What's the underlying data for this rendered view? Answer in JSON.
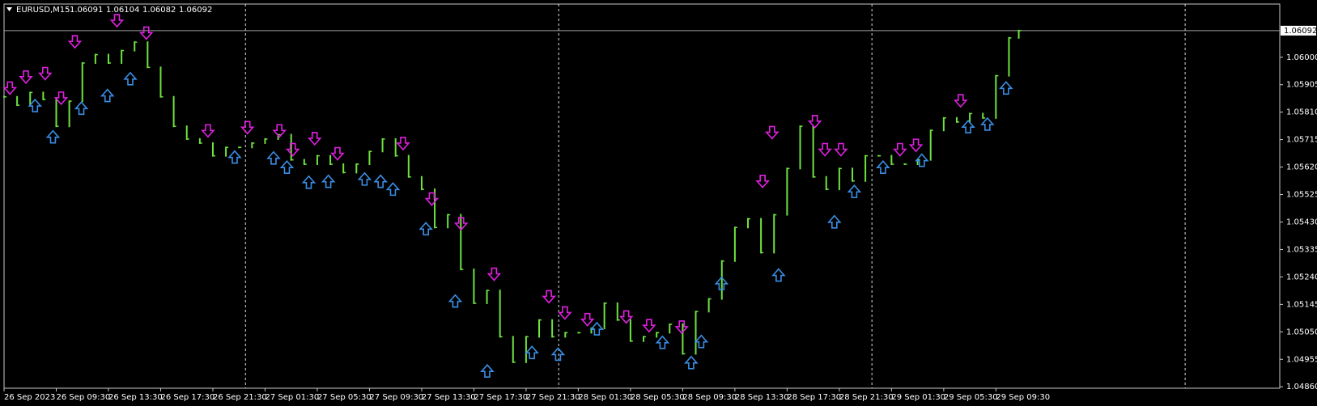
{
  "chart_data": {
    "type": "ohlc",
    "title": "EURUSD,M15",
    "header_values": [
      1.06091,
      1.06104,
      1.06082,
      1.06092
    ],
    "last_price": 1.06092,
    "color": "#6fe33f",
    "x": [
      0,
      4,
      8,
      12,
      16,
      20,
      24,
      28,
      32,
      36,
      40,
      44,
      48,
      52,
      56,
      60,
      64,
      68,
      72,
      76,
      80,
      84,
      88,
      92,
      96,
      100,
      104,
      108,
      112,
      116,
      120,
      124,
      128,
      132,
      136,
      140,
      144,
      148,
      152,
      156,
      160,
      164,
      168,
      172,
      176,
      180,
      184,
      188,
      192,
      196,
      200,
      204,
      208,
      212,
      216,
      220,
      224,
      228,
      232,
      236,
      240,
      244,
      248,
      252,
      256,
      260,
      264,
      268,
      272,
      276,
      280,
      284,
      288,
      292,
      296,
      300,
      304,
      308,
      311
    ],
    "values": [
      1.05863,
      1.05834,
      1.05878,
      1.05854,
      1.05761,
      1.05848,
      1.0598,
      1.06009,
      1.0598,
      1.06023,
      1.06052,
      1.05965,
      1.05863,
      1.05761,
      1.05717,
      1.05703,
      1.05659,
      1.05688,
      1.05688,
      1.05703,
      1.05717,
      1.05732,
      1.05645,
      1.0563,
      1.05659,
      1.0563,
      1.05601,
      1.0563,
      1.05674,
      1.05717,
      1.05659,
      1.05586,
      1.05543,
      1.05411,
      1.05455,
      1.05266,
      1.05149,
      1.05193,
      1.05033,
      1.04945,
      1.05033,
      1.05091,
      1.05033,
      1.05047,
      1.05047,
      1.05062,
      1.05149,
      1.05091,
      1.05018,
      1.05033,
      1.05047,
      1.05076,
      1.04974,
      1.0512,
      1.05164,
      1.05295,
      1.05411,
      1.05441,
      1.05324,
      1.05455,
      1.05615,
      1.05761,
      1.05586,
      1.05543,
      1.05615,
      1.05572,
      1.05659,
      1.05659,
      1.0563,
      1.0563,
      1.05645,
      1.05747,
      1.0579,
      1.05776,
      1.05805,
      1.0579,
      1.05936,
      1.06067,
      1.06092
    ],
    "sell_arrows": {
      "color": "#e020e0",
      "x": [
        1.8,
        6.7,
        12.6,
        17.5,
        21.7,
        34.6,
        43.6,
        62.5,
        74.6,
        84.4,
        88.5,
        95.2,
        102.2,
        122.3,
        131.1,
        140.1,
        150.2,
        167.0,
        171.9,
        178.8,
        190.7,
        197.7,
        207.7,
        232.5,
        235.4,
        248.5,
        251.6,
        256.5,
        274.6,
        279.5,
        293.2
      ],
      "values": [
        1.05892,
        1.0593,
        1.05942,
        1.05857,
        1.06052,
        1.06125,
        1.06082,
        1.05744,
        1.05755,
        1.05744,
        1.05679,
        1.05717,
        1.05665,
        1.057,
        1.05508,
        1.05423,
        1.05248,
        1.0517,
        1.05114,
        1.05091,
        1.051,
        1.0507,
        1.05065,
        1.05569,
        1.05738,
        1.05776,
        1.05679,
        1.05679,
        1.05679,
        1.05694,
        1.05848
      ]
    },
    "buy_arrows": {
      "color": "#3a8ee6",
      "x": [
        9.5,
        15.0,
        23.7,
        31.7,
        38.7,
        70.7,
        82.6,
        86.7,
        93.4,
        99.4,
        110.5,
        115.4,
        119.2,
        129.3,
        138.3,
        148.1,
        161.8,
        169.8,
        181.7,
        201.8,
        210.6,
        213.7,
        219.9,
        237.4,
        254.5,
        260.6,
        269.4,
        281.3,
        295.5,
        301.4,
        307.1
      ],
      "values": [
        1.05834,
        1.05726,
        1.05825,
        1.05869,
        1.05927,
        1.05656,
        1.05653,
        1.05621,
        1.05569,
        1.05572,
        1.0558,
        1.05572,
        1.05545,
        1.05408,
        1.05158,
        1.04916,
        1.0498,
        1.04974,
        1.05062,
        1.05015,
        1.04945,
        1.05018,
        1.05219,
        1.05248,
        1.05432,
        1.05537,
        1.05621,
        1.05645,
        1.05761,
        1.0577,
        1.05895
      ]
    },
    "xlim": [
      0,
      391
    ],
    "ylim": [
      1.04855,
      1.06184
    ],
    "xticks": [
      {
        "value": 0,
        "label": "26 Sep 2023"
      },
      {
        "value": 16,
        "label": "26 Sep 09:30"
      },
      {
        "value": 32,
        "label": "26 Sep 13:30"
      },
      {
        "value": 48,
        "label": "26 Sep 17:30"
      },
      {
        "value": 64,
        "label": "26 Sep 21:30"
      },
      {
        "value": 80,
        "label": "27 Sep 01:30"
      },
      {
        "value": 96,
        "label": "27 Sep 05:30"
      },
      {
        "value": 112,
        "label": "27 Sep 09:30"
      },
      {
        "value": 128,
        "label": "27 Sep 13:30"
      },
      {
        "value": 144,
        "label": "27 Sep 17:30"
      },
      {
        "value": 160,
        "label": "27 Sep 21:30"
      },
      {
        "value": 176,
        "label": "28 Sep 01:30"
      },
      {
        "value": 192,
        "label": "28 Sep 05:30"
      },
      {
        "value": 208,
        "label": "28 Sep 09:30"
      },
      {
        "value": 224,
        "label": "28 Sep 13:30"
      },
      {
        "value": 240,
        "label": "28 Sep 17:30"
      },
      {
        "value": 256,
        "label": "28 Sep 21:30"
      },
      {
        "value": 272,
        "label": "29 Sep 01:30"
      },
      {
        "value": 288,
        "label": "29 Sep 05:30"
      },
      {
        "value": 304,
        "label": "29 Sep 09:30"
      }
    ],
    "xgrid": [
      74,
      170,
      266,
      362
    ],
    "yticks": [
      {
        "value": 1.06,
        "label": "1.06000"
      },
      1.05905,
      {
        "value": 1.0581,
        "label": "1.05810"
      },
      1.05715,
      {
        "value": 1.0562,
        "label": "1.05620"
      },
      1.05525,
      {
        "value": 1.0543,
        "label": "1.05430"
      },
      1.05335,
      {
        "value": 1.0524,
        "label": "1.05240"
      },
      1.05145,
      {
        "value": 1.0505,
        "label": "1.05050"
      },
      1.04955,
      {
        "value": 1.0486,
        "label": "1.04860"
      }
    ]
  }
}
